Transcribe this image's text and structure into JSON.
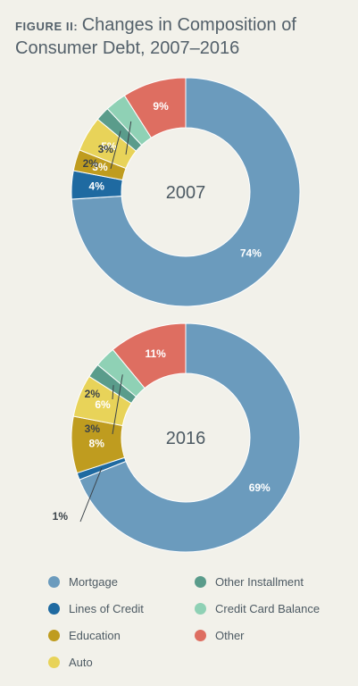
{
  "title": {
    "label": "FIGURE II:",
    "text": "Changes in Composition of Consumer Debt, 2007–2016"
  },
  "chart_data": [
    {
      "type": "pie",
      "center_label": "2007",
      "categories": [
        "Mortgage",
        "Lines of Credit",
        "Education",
        "Auto",
        "Other Installment",
        "Credit Card Balance",
        "Other"
      ],
      "values": [
        74,
        4,
        3,
        5,
        2,
        3,
        9
      ],
      "labels": [
        "74%",
        "4%",
        "3%",
        "5%",
        "2%",
        "3%",
        "9%"
      ]
    },
    {
      "type": "pie",
      "center_label": "2016",
      "categories": [
        "Mortgage",
        "Lines of Credit",
        "Education",
        "Auto",
        "Other Installment",
        "Credit Card Balance",
        "Other"
      ],
      "values": [
        69,
        1,
        8,
        6,
        2,
        3,
        11
      ],
      "labels": [
        "69%",
        "1%",
        "8%",
        "6%",
        "2%",
        "3%",
        "11%"
      ]
    }
  ],
  "legend": [
    {
      "label": "Mortgage",
      "color": "#6b9bbd"
    },
    {
      "label": "Lines of Credit",
      "color": "#1f6aa1"
    },
    {
      "label": "Education",
      "color": "#bf9c1f"
    },
    {
      "label": "Auto",
      "color": "#e8d359"
    },
    {
      "label": "Other Installment",
      "color": "#5a9c8b"
    },
    {
      "label": "Credit Card Balance",
      "color": "#8fd1b5"
    },
    {
      "label": "Other",
      "color": "#de6e61"
    }
  ]
}
